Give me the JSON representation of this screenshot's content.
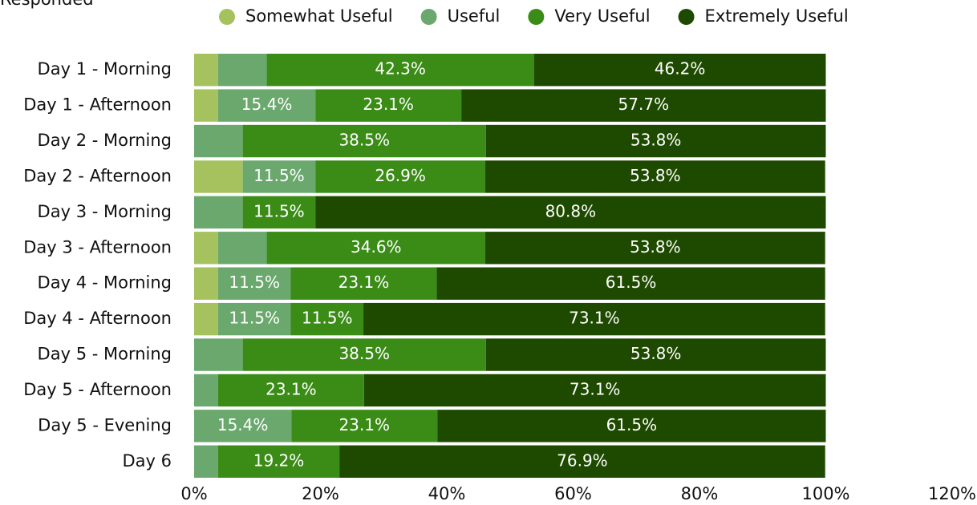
{
  "chart_data": {
    "type": "stacked-barh",
    "title": "Responded",
    "categories": [
      "Day 1 - Morning",
      "Day 1 - Afternoon",
      "Day 2 - Morning",
      "Day 2 - Afternoon",
      "Day 3 - Morning",
      "Day 3 - Afternoon",
      "Day 4 - Morning",
      "Day 4 - Afternoon",
      "Day 5 - Morning",
      "Day 5 - Afternoon",
      "Day 5 - Evening",
      "Day 6"
    ],
    "series": [
      {
        "name": "Somewhat Useful",
        "color": "#a5c25f",
        "values": [
          3.8,
          3.8,
          0,
          7.7,
          0,
          3.8,
          3.8,
          3.8,
          0,
          0,
          0,
          0
        ],
        "value_labels": [
          null,
          null,
          null,
          null,
          null,
          null,
          null,
          null,
          null,
          null,
          null,
          null
        ]
      },
      {
        "name": "Useful",
        "color": "#6aa86d",
        "values": [
          7.7,
          15.4,
          7.7,
          11.5,
          7.7,
          7.7,
          11.5,
          11.5,
          7.7,
          3.8,
          15.4,
          3.8
        ],
        "value_labels": [
          null,
          "15.4%",
          null,
          "11.5%",
          null,
          null,
          "11.5%",
          "11.5%",
          null,
          null,
          "15.4%",
          null
        ]
      },
      {
        "name": "Very Useful",
        "color": "#3b8c17",
        "values": [
          42.3,
          23.1,
          38.5,
          26.9,
          11.5,
          34.6,
          23.1,
          11.5,
          38.5,
          23.1,
          23.1,
          19.2
        ],
        "value_labels": [
          "42.3%",
          "23.1%",
          "38.5%",
          "26.9%",
          "11.5%",
          "34.6%",
          "23.1%",
          "11.5%",
          "38.5%",
          "23.1%",
          "23.1%",
          "19.2%"
        ]
      },
      {
        "name": "Extremely Useful",
        "color": "#1e4a00",
        "values": [
          46.2,
          57.7,
          53.8,
          53.8,
          80.8,
          53.8,
          61.5,
          73.1,
          53.8,
          73.1,
          61.5,
          76.9
        ],
        "value_labels": [
          "46.2%",
          "57.7%",
          "53.8%",
          "53.8%",
          "80.8%",
          "53.8%",
          "61.5%",
          "73.1%",
          "53.8%",
          "73.1%",
          "61.5%",
          "76.9%"
        ]
      }
    ],
    "xlim": [
      0,
      120
    ],
    "xticks": [
      {
        "value": 0,
        "label": "0%"
      },
      {
        "value": 20,
        "label": "20%"
      },
      {
        "value": 40,
        "label": "40%"
      },
      {
        "value": 60,
        "label": "60%"
      },
      {
        "value": 80,
        "label": "80%"
      },
      {
        "value": 100,
        "label": "100%"
      },
      {
        "value": 120,
        "label": "120%"
      }
    ],
    "legend": "top"
  }
}
